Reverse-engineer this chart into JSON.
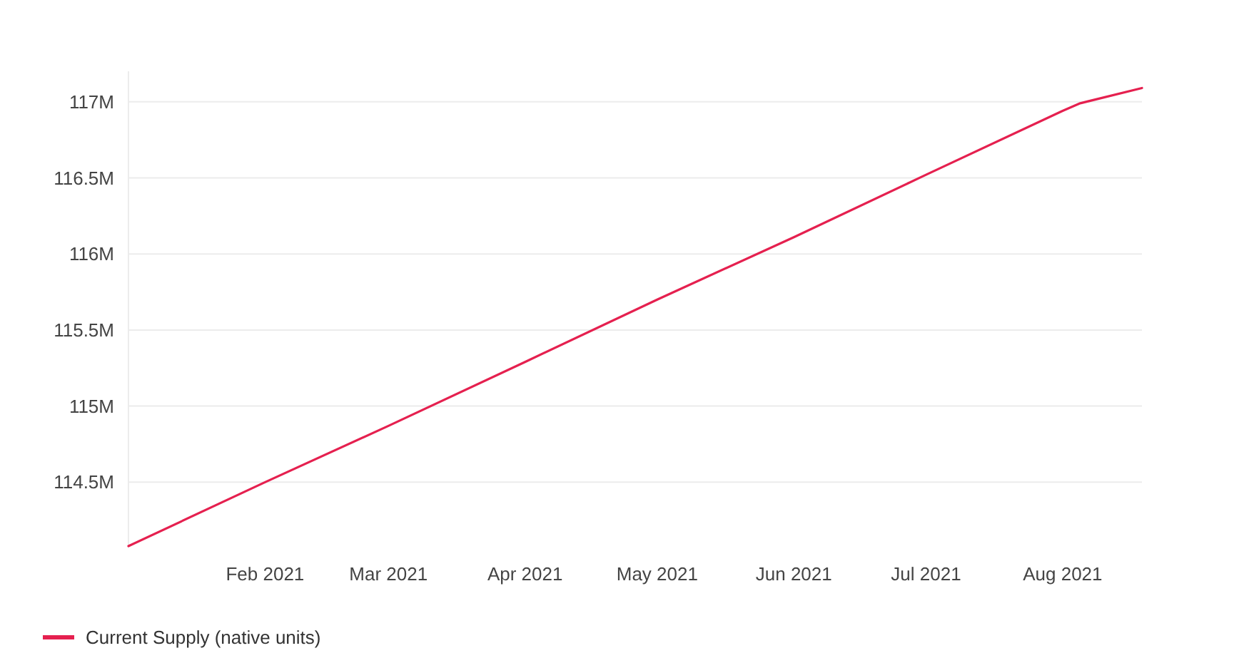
{
  "chart_data": {
    "type": "line",
    "x": [
      "2021-01-01",
      "2021-02-01",
      "2021-03-01",
      "2021-04-01",
      "2021-05-01",
      "2021-06-01",
      "2021-07-01",
      "2021-08-01",
      "2021-08-05",
      "2021-08-19"
    ],
    "series": [
      {
        "name": "Current Supply (native units)",
        "color": "#e5204f",
        "values": [
          114.08,
          114.5,
          114.87,
          115.29,
          115.7,
          116.11,
          116.52,
          116.94,
          116.99,
          117.09
        ]
      }
    ],
    "xlim": [
      "2021-01-01",
      "2021-08-19"
    ],
    "xticks": [
      {
        "value": "2021-02-01",
        "label": "Feb 2021"
      },
      {
        "value": "2021-03-01",
        "label": "Mar 2021"
      },
      {
        "value": "2021-04-01",
        "label": "Apr 2021"
      },
      {
        "value": "2021-05-01",
        "label": "May 2021"
      },
      {
        "value": "2021-06-01",
        "label": "Jun 2021"
      },
      {
        "value": "2021-07-01",
        "label": "Jul 2021"
      },
      {
        "value": "2021-08-01",
        "label": "Aug 2021"
      }
    ],
    "ylim": [
      114.08,
      117.2
    ],
    "yticks": [
      {
        "value": 114.5,
        "label": "114.5M"
      },
      {
        "value": 115,
        "label": "115M"
      },
      {
        "value": 115.5,
        "label": "115.5M"
      },
      {
        "value": 116,
        "label": "116M"
      },
      {
        "value": 116.5,
        "label": "116.5M"
      },
      {
        "value": 117,
        "label": "117M"
      }
    ],
    "grid": "y",
    "legend": "bottom left",
    "marker": "none",
    "line_style": "solid"
  }
}
